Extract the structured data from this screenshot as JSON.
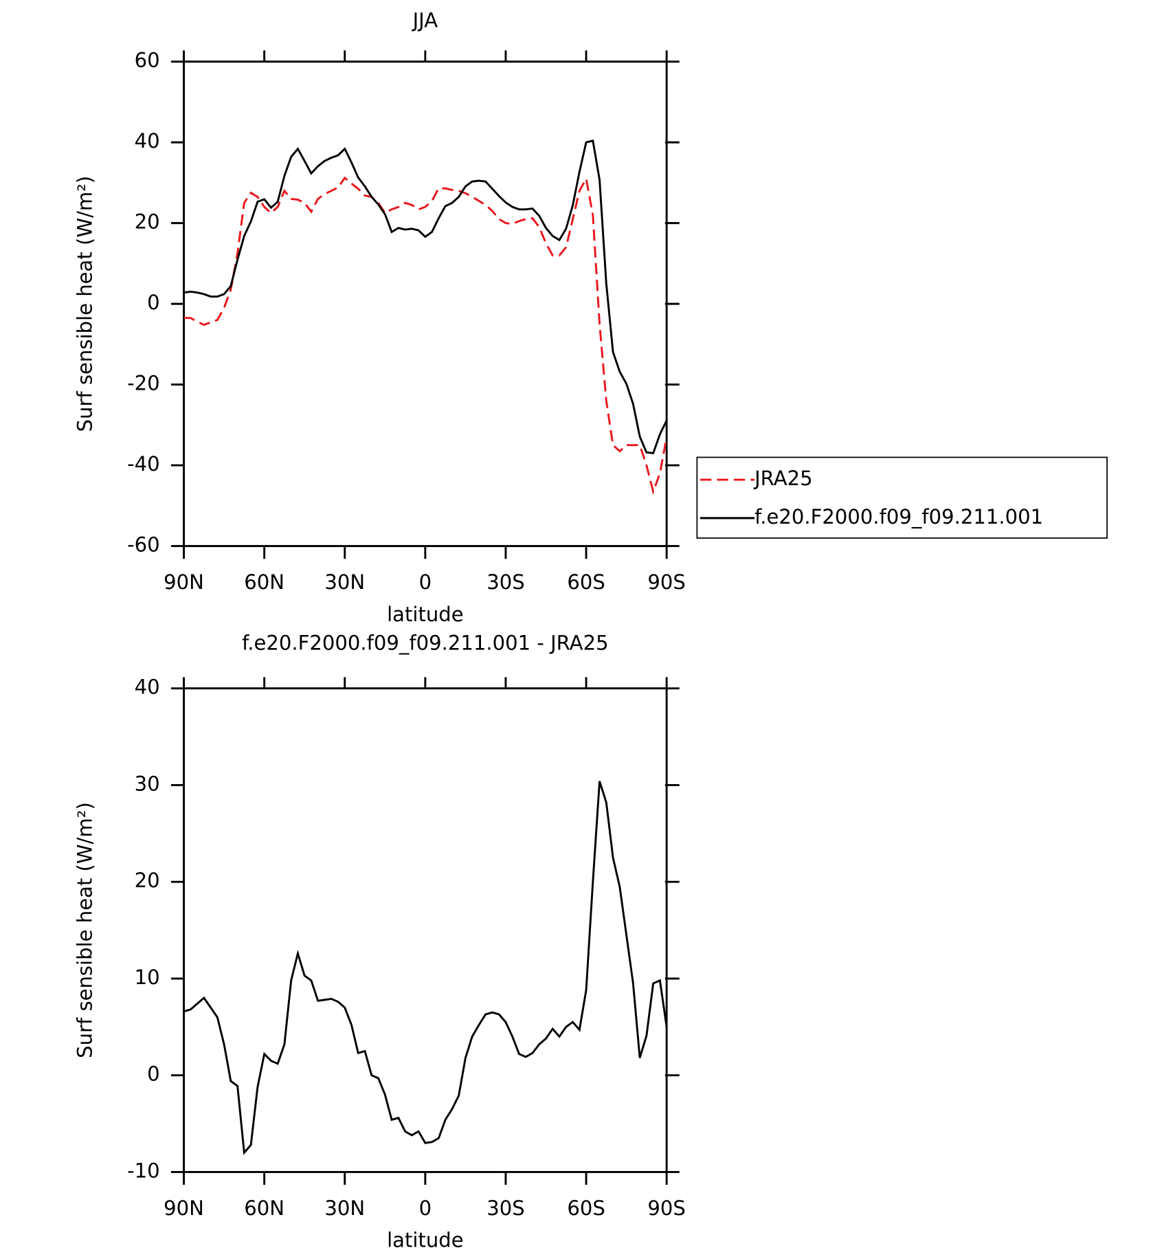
{
  "chart_data": [
    {
      "type": "line",
      "title": "JJA",
      "xlabel": "latitude",
      "ylabel": "Surf sensible heat (W/m²)",
      "x": [
        90,
        87.5,
        85,
        82.5,
        80,
        77.5,
        75,
        72.5,
        70,
        67.5,
        65,
        62.5,
        60,
        57.5,
        55,
        52.5,
        50,
        47.5,
        45,
        42.5,
        40,
        37.5,
        35,
        32.5,
        30,
        27.5,
        25,
        22.5,
        20,
        17.5,
        15,
        12.5,
        10,
        7.5,
        5,
        2.5,
        0,
        -2.5,
        -5,
        -7.5,
        -10,
        -12.5,
        -15,
        -17.5,
        -20,
        -22.5,
        -25,
        -27.5,
        -30,
        -32.5,
        -35,
        -37.5,
        -40,
        -42.5,
        -45,
        -47.5,
        -50,
        -52.5,
        -55,
        -57.5,
        -60,
        -62.5,
        -65,
        -67.5,
        -70,
        -72.5,
        -75,
        -77.5,
        -80,
        -82.5,
        -85,
        -87.5,
        -90
      ],
      "series": [
        {
          "name": "JRA25",
          "color": "#e8161b",
          "dash": true,
          "values": [
            -3.5,
            -3.5,
            -4.4,
            -5.2,
            -4.6,
            -4.0,
            -1.0,
            3.5,
            12.5,
            25.0,
            27.5,
            26.5,
            24.0,
            22.5,
            24.0,
            28.0,
            26.0,
            25.8,
            25.0,
            22.8,
            26.0,
            27.2,
            28.0,
            28.8,
            31.2,
            29.8,
            28.5,
            26.8,
            26.5,
            25.0,
            22.5,
            23.4,
            24.0,
            25.0,
            24.5,
            23.4,
            24.0,
            25.5,
            28.6,
            28.6,
            28.2,
            28.0,
            27.4,
            26.5,
            25.5,
            24.5,
            23.0,
            21.0,
            20.0,
            19.8,
            20.5,
            21.0,
            21.2,
            19.0,
            15.0,
            12.0,
            12.0,
            14.0,
            21.0,
            28.0,
            31.0,
            22.0,
            -5.0,
            -24.0,
            -35.0,
            -36.5,
            -35.0,
            -35.0,
            -35.0,
            -40.0,
            -46.5,
            -42.0,
            -33.0
          ]
        },
        {
          "name": "f.e20.F2000.f09_f09.211.001",
          "color": "#000000",
          "dash": false,
          "values": [
            2.8,
            3.0,
            2.8,
            2.4,
            1.8,
            1.8,
            2.4,
            4.4,
            10.9,
            16.8,
            20.4,
            25.3,
            25.9,
            23.8,
            25.3,
            31.7,
            36.4,
            38.4,
            35.4,
            32.3,
            34.1,
            35.4,
            36.2,
            36.8,
            38.4,
            35.0,
            31.3,
            29.1,
            26.5,
            24.6,
            22.2,
            17.8,
            18.8,
            18.4,
            18.6,
            18.2,
            16.6,
            17.8,
            21.2,
            24.2,
            25.0,
            26.5,
            29.1,
            30.3,
            30.5,
            30.3,
            28.5,
            26.7,
            25.1,
            24.0,
            23.4,
            23.4,
            23.6,
            21.8,
            18.8,
            16.8,
            15.8,
            18.6,
            24.4,
            32.7,
            40.0,
            40.4,
            30.7,
            5.0,
            -11.9,
            -16.8,
            -19.8,
            -24.8,
            -32.9,
            -36.8,
            -37.0,
            -32.3,
            -28.9
          ]
        }
      ],
      "xlim": [
        90,
        -90
      ],
      "xticks": [
        {
          "value": 90,
          "label": "90N"
        },
        {
          "value": 60,
          "label": "60N"
        },
        {
          "value": 30,
          "label": "30N"
        },
        0,
        {
          "value": -30,
          "label": "30S"
        },
        {
          "value": -60,
          "label": "60S"
        },
        {
          "value": -90,
          "label": "90S"
        }
      ],
      "ylim": [
        -60,
        60
      ],
      "yticks": [
        60,
        40,
        20,
        0,
        -20,
        -40,
        -60
      ],
      "legend": "right"
    },
    {
      "type": "line",
      "title": "f.e20.F2000.f09_f09.211.001 - JRA25",
      "xlabel": "latitude",
      "ylabel": "Surf sensible heat (W/m²)",
      "x": [
        90,
        87.5,
        85,
        82.5,
        80,
        77.5,
        75,
        72.5,
        70,
        67.5,
        65,
        62.5,
        60,
        57.5,
        55,
        52.5,
        50,
        47.5,
        45,
        42.5,
        40,
        37.5,
        35,
        32.5,
        30,
        27.5,
        25,
        22.5,
        20,
        17.5,
        15,
        12.5,
        10,
        7.5,
        5,
        2.5,
        0,
        -2.5,
        -5,
        -7.5,
        -10,
        -12.5,
        -15,
        -17.5,
        -20,
        -22.5,
        -25,
        -27.5,
        -30,
        -32.5,
        -35,
        -37.5,
        -40,
        -42.5,
        -45,
        -47.5,
        -50,
        -52.5,
        -55,
        -57.5,
        -60,
        -62.5,
        -65,
        -67.5,
        -70,
        -72.5,
        -75,
        -77.5,
        -80,
        -82.5,
        -85,
        -87.5,
        -90
      ],
      "series": [
        {
          "color": "#000000",
          "dash": false,
          "values": [
            6.6,
            6.8,
            7.4,
            8.0,
            7.0,
            6.0,
            3.2,
            -0.6,
            -1.1,
            -8.0,
            -7.2,
            -1.2,
            2.2,
            1.5,
            1.2,
            3.2,
            9.8,
            12.6,
            10.3,
            9.8,
            7.7,
            7.8,
            7.9,
            7.6,
            7.0,
            5.2,
            2.3,
            2.5,
            0.0,
            -0.3,
            -2.0,
            -4.6,
            -4.4,
            -5.8,
            -6.2,
            -5.8,
            -7.0,
            -6.9,
            -6.5,
            -4.6,
            -3.5,
            -2.1,
            1.8,
            4.0,
            5.2,
            6.3,
            6.5,
            6.3,
            5.5,
            4.0,
            2.2,
            1.9,
            2.3,
            3.2,
            3.8,
            4.8,
            4.0,
            5.0,
            5.5,
            4.7,
            8.8,
            20.0,
            30.4,
            28.2,
            22.5,
            19.5,
            14.5,
            9.5,
            1.8,
            4.1,
            9.5,
            9.8,
            5.0
          ]
        }
      ],
      "xlim": [
        90,
        -90
      ],
      "xticks": [
        {
          "value": 90,
          "label": "90N"
        },
        {
          "value": 60,
          "label": "60N"
        },
        {
          "value": 30,
          "label": "30N"
        },
        0,
        {
          "value": -30,
          "label": "30S"
        },
        {
          "value": -60,
          "label": "60S"
        },
        {
          "value": -90,
          "label": "90S"
        }
      ],
      "ylim": [
        -10,
        40
      ],
      "yticks": [
        40,
        30,
        20,
        10,
        0,
        -10
      ]
    }
  ]
}
